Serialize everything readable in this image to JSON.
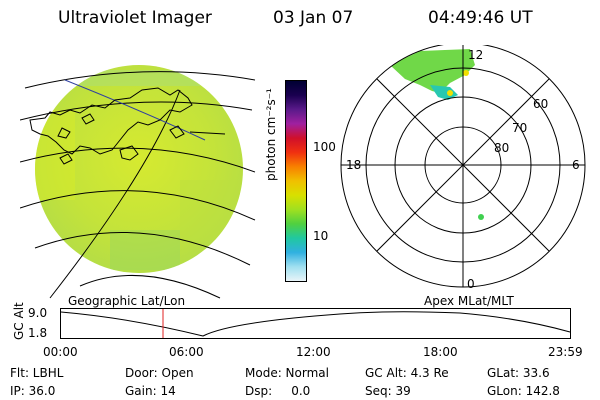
{
  "header": {
    "title": "Ultraviolet Imager",
    "date": "03 Jan 07",
    "time": "04:49:46 UT"
  },
  "colorbar": {
    "unit_label": "photon cm⁻²s⁻¹",
    "ticks": [
      "100",
      "10"
    ],
    "colors": [
      "#000033",
      "#1a0050",
      "#5a1a8a",
      "#a020a0",
      "#d0102a",
      "#f03010",
      "#f88000",
      "#f0c000",
      "#d8e000",
      "#a0e020",
      "#50d040",
      "#20c8a0",
      "#30b0e0",
      "#a0e0f0",
      "#e8f4f8"
    ]
  },
  "polar": {
    "mlt_labels": {
      "top": "12",
      "left": "18",
      "right": "6",
      "bottom": "0"
    },
    "lat_labels": [
      "60",
      "70",
      "80"
    ]
  },
  "altitude_plot": {
    "ylabel": "GC Alt",
    "yticks": [
      "9.0",
      "1.8"
    ],
    "left_title": "Geographic Lat/Lon",
    "right_title": "Apex MLat/MLT",
    "xticks": [
      "00:00",
      "06:00",
      "12:00",
      "18:00",
      "23:59"
    ]
  },
  "info": {
    "row1": {
      "flt": "Flt: LBHL",
      "door": "Door: Open",
      "mode": "Mode: Normal",
      "gcalt": "GC Alt: 4.3 Re",
      "glat": "GLat: 33.6"
    },
    "row2": {
      "ip": "IP: 36.0",
      "gain": "Gain: 14",
      "dsp": "Dsp:     0.0",
      "seq": "Seq: 39",
      "glon": "GLon: 142.8"
    }
  }
}
